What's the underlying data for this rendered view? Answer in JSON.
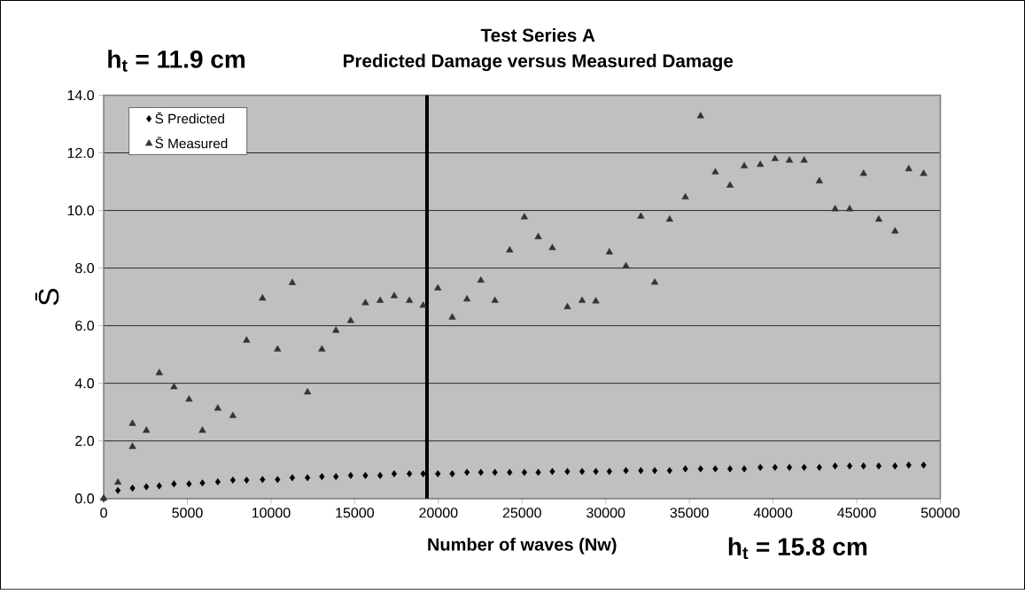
{
  "chart_data": {
    "type": "scatter",
    "title": "Test Series A",
    "subtitle": "Predicted Damage versus Measured Damage",
    "xlabel": "Number of waves (Nw)",
    "ylabel": "S̄",
    "annotations": [
      "h$_{t}$ = 11.9 cm",
      "h$_{t}$ = 15.8 cm"
    ],
    "xlim": [
      0,
      50000
    ],
    "xticks": [
      0,
      5000,
      10000,
      15000,
      20000,
      25000,
      30000,
      35000,
      40000,
      45000,
      50000
    ],
    "ylim": [
      0,
      14
    ],
    "yticks": [
      {
        "value": 0,
        "label": "0.0"
      },
      {
        "value": 2,
        "label": "2.0"
      },
      {
        "value": 4,
        "label": "4.0"
      },
      {
        "value": 6,
        "label": "6.0"
      },
      {
        "value": 8,
        "label": "8.0"
      },
      {
        "value": 10,
        "label": "10.0"
      },
      {
        "value": 12,
        "label": "12.0"
      },
      {
        "value": 14,
        "label": "14.0"
      }
    ],
    "grid": "y",
    "legend": "top left",
    "ref_lines": [
      {
        "axis": "x",
        "value": 19320,
        "color": "#000000"
      }
    ],
    "series": [
      {
        "name": "S̄ Predicted",
        "color": "#000000",
        "marker": "diamond",
        "x": [
          0,
          850,
          1720,
          2550,
          3320,
          4200,
          5100,
          5900,
          6820,
          7720,
          8540,
          9490,
          10390,
          11270,
          12180,
          13040,
          13880,
          14760,
          15640,
          16520,
          17360,
          18270,
          19090,
          19970,
          20830,
          21710,
          22540,
          23380,
          24260,
          25140,
          25970,
          26810,
          27710,
          28590,
          29410,
          30220,
          31210,
          32100,
          32930,
          33820,
          34760,
          35670,
          36550,
          37430,
          38280,
          39240,
          40120,
          40980,
          41860,
          42770,
          43710,
          44580,
          45410,
          46320,
          47290,
          48110,
          49000
        ],
        "values": [
          0,
          0.28,
          0.36,
          0.41,
          0.44,
          0.51,
          0.51,
          0.54,
          0.58,
          0.64,
          0.64,
          0.66,
          0.66,
          0.72,
          0.72,
          0.76,
          0.76,
          0.8,
          0.8,
          0.8,
          0.86,
          0.86,
          0.86,
          0.86,
          0.86,
          0.91,
          0.91,
          0.91,
          0.91,
          0.91,
          0.91,
          0.94,
          0.94,
          0.94,
          0.94,
          0.94,
          0.97,
          0.97,
          0.97,
          0.97,
          1.03,
          1.03,
          1.03,
          1.03,
          1.03,
          1.08,
          1.08,
          1.08,
          1.08,
          1.08,
          1.13,
          1.13,
          1.13,
          1.13,
          1.13,
          1.16,
          1.16
        ]
      },
      {
        "name": "S̄ Measured",
        "color": "#333333",
        "marker": "triangle",
        "x": [
          0,
          850,
          1720,
          1720,
          2550,
          3320,
          4200,
          5100,
          5900,
          6820,
          7720,
          8540,
          9490,
          10390,
          11270,
          12180,
          13040,
          13880,
          14760,
          15640,
          16520,
          17360,
          18270,
          19090,
          19970,
          20830,
          21710,
          22540,
          23380,
          24260,
          25140,
          25970,
          26810,
          27710,
          28590,
          29410,
          30220,
          31210,
          32100,
          32930,
          33820,
          34760,
          35670,
          36550,
          37430,
          38280,
          39240,
          40120,
          40980,
          41860,
          42770,
          43710,
          44580,
          45410,
          46320,
          47290,
          48110,
          49000
        ],
        "values": [
          0,
          0.56,
          2.6,
          1.8,
          2.36,
          4.36,
          3.87,
          3.44,
          2.36,
          3.13,
          2.87,
          5.49,
          6.95,
          5.18,
          7.49,
          3.69,
          5.18,
          5.83,
          6.17,
          6.79,
          6.87,
          7.03,
          6.87,
          6.7,
          7.3,
          6.29,
          6.92,
          7.57,
          6.87,
          8.62,
          9.77,
          9.08,
          8.7,
          6.65,
          6.87,
          6.85,
          8.55,
          8.07,
          9.79,
          7.5,
          9.69,
          10.46,
          13.28,
          11.33,
          10.87,
          11.54,
          11.59,
          11.79,
          11.74,
          11.74,
          11.02,
          10.05,
          10.05,
          11.28,
          9.69,
          9.28,
          11.44,
          11.28
        ]
      }
    ]
  }
}
